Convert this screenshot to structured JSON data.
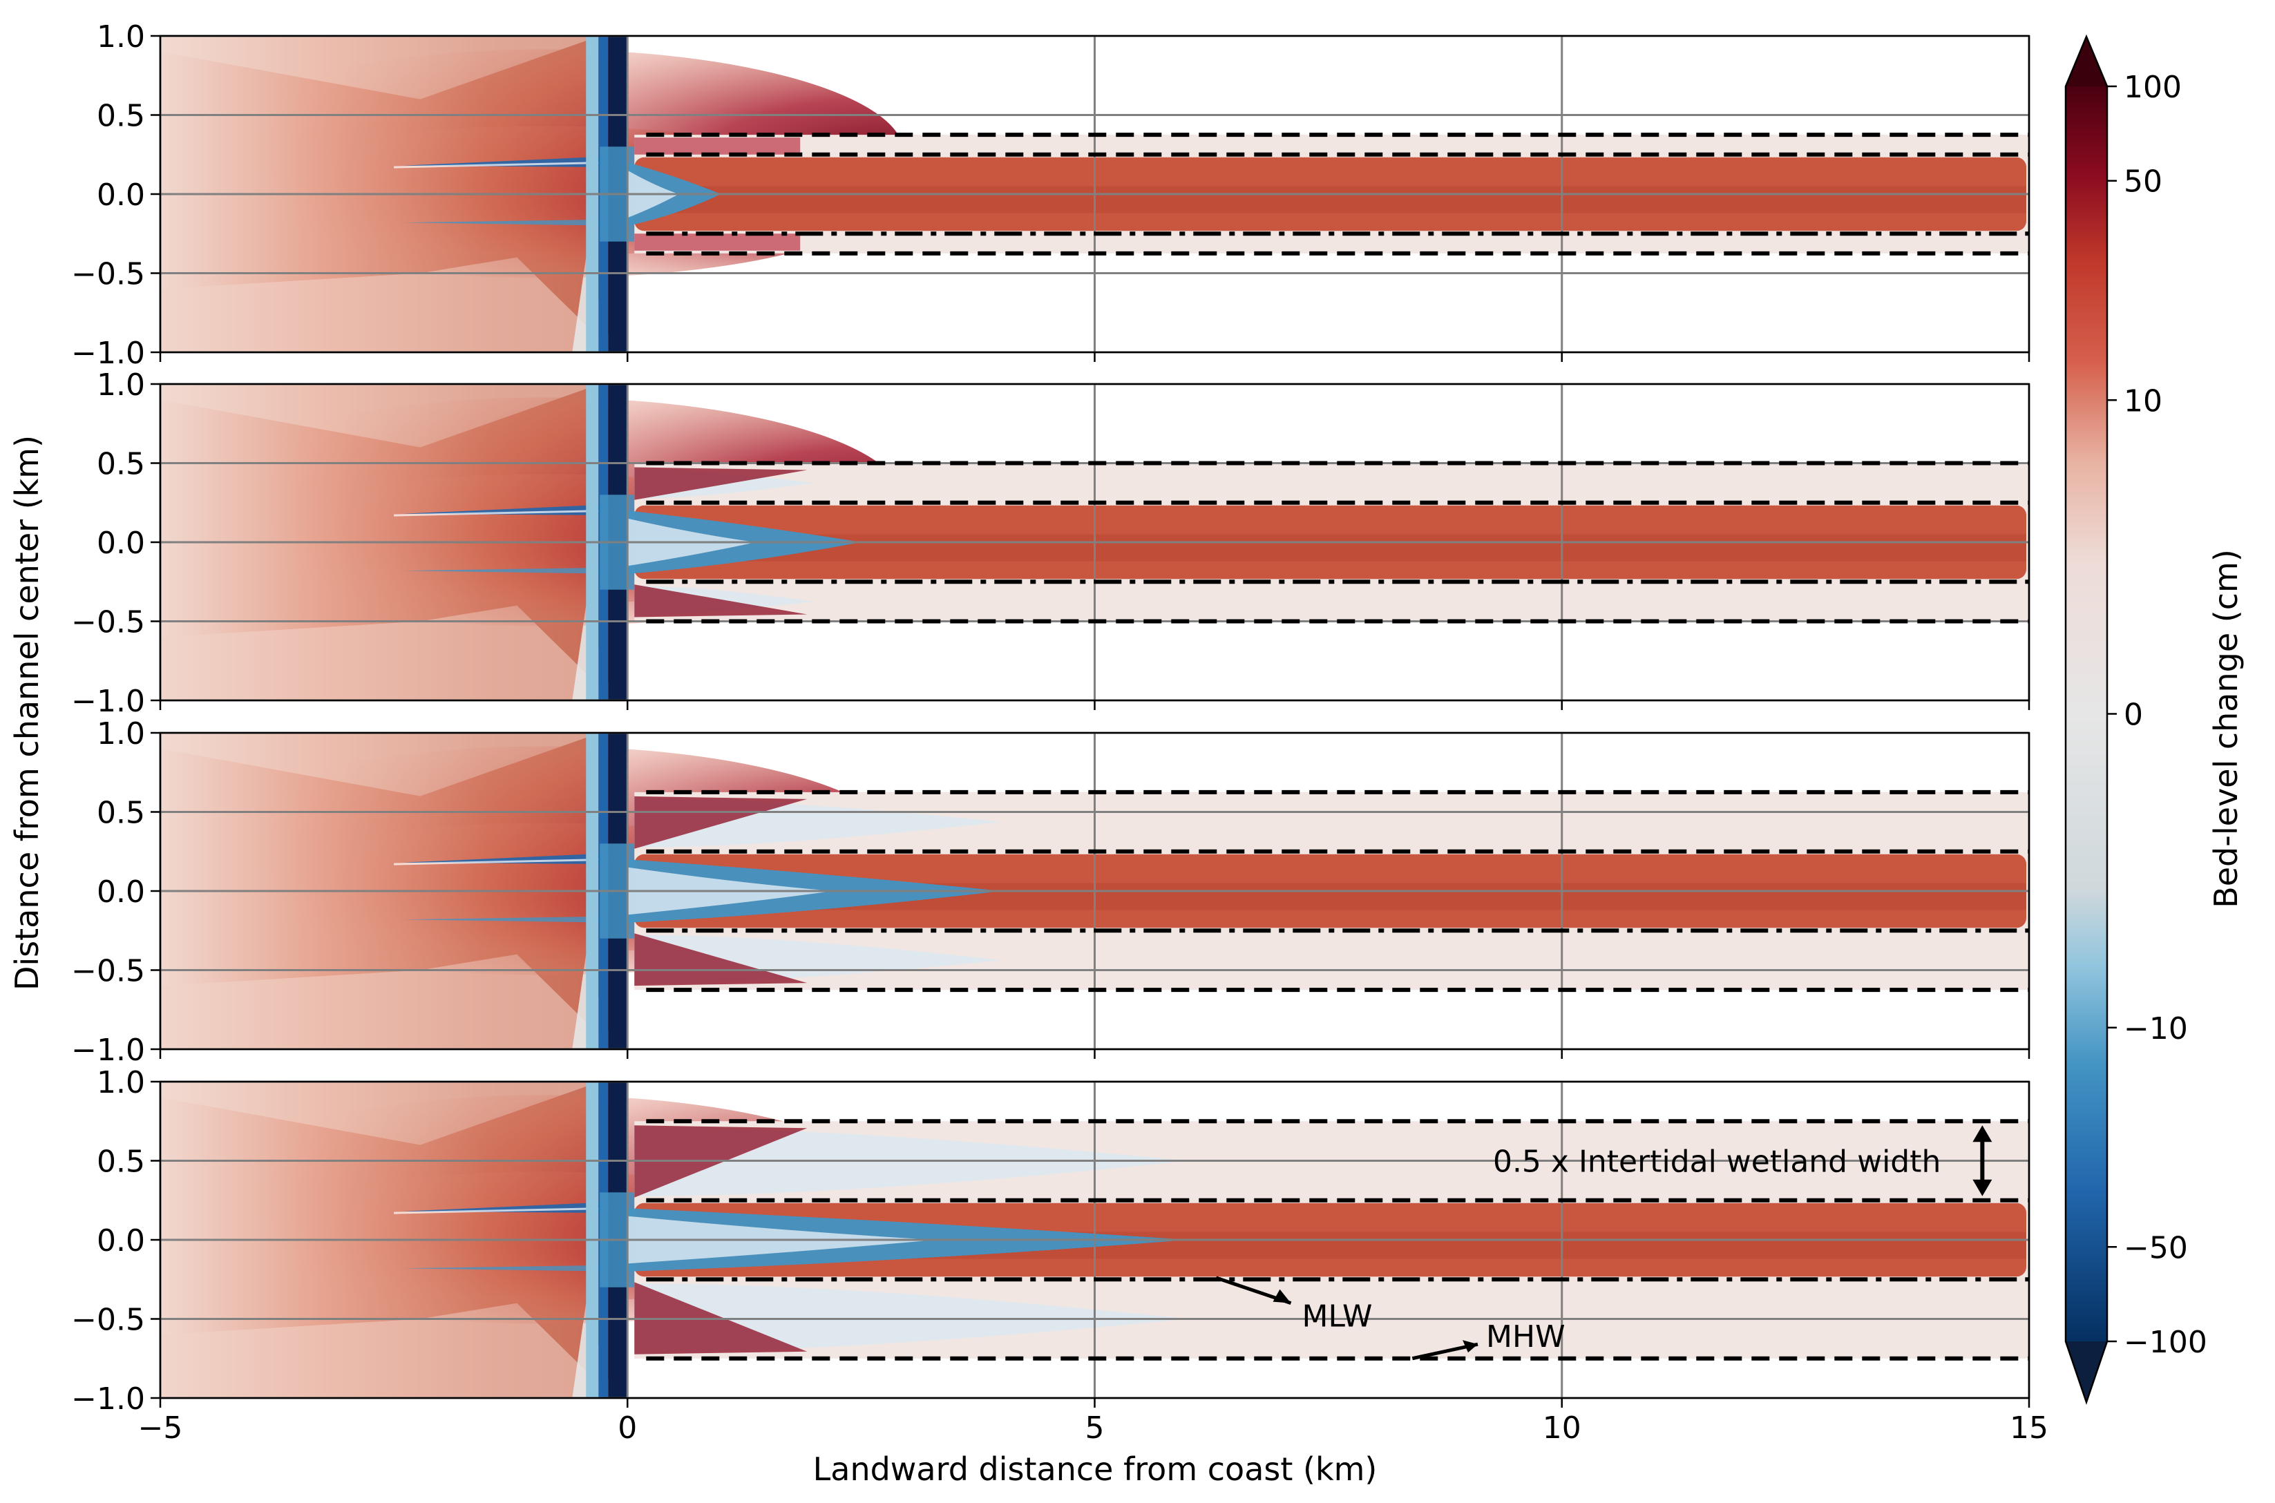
{
  "chart_data": {
    "type": "heatmap",
    "description_panels": 4,
    "xlabel": "Landward distance from coast (km)",
    "ylabel": "Distance from channel center (km)",
    "xlim": [
      -5,
      15
    ],
    "ylim": [
      -1,
      1
    ],
    "x_ticks": [
      {
        "value": -5,
        "label": "−5"
      },
      {
        "value": 0,
        "label": "0"
      },
      {
        "value": 5,
        "label": "5"
      },
      {
        "value": 10,
        "label": "10"
      },
      {
        "value": 15,
        "label": "15"
      }
    ],
    "y_ticks": [
      {
        "value": 1.0,
        "label": "1.0"
      },
      {
        "value": 0.5,
        "label": "0.5"
      },
      {
        "value": 0.0,
        "label": "0.0"
      },
      {
        "value": -0.5,
        "label": "−0.5"
      },
      {
        "value": -1.0,
        "label": "−1.0"
      }
    ],
    "grid": true,
    "panels": [
      {
        "mhw": 0.375,
        "mlw": 0.25,
        "wetland_half_width": 0.375,
        "blue_extent_km": 1.0,
        "fade_km": 0.5
      },
      {
        "mhw": 0.5,
        "mlw": 0.25,
        "wetland_half_width": 0.5,
        "blue_extent_km": 2.5,
        "fade_km": 2.0
      },
      {
        "mhw": 0.625,
        "mlw": 0.25,
        "wetland_half_width": 0.625,
        "blue_extent_km": 4.0,
        "fade_km": 4.0
      },
      {
        "mhw": 0.75,
        "mlw": 0.25,
        "wetland_half_width": 0.75,
        "blue_extent_km": 6.0,
        "fade_km": 6.0
      }
    ],
    "colorbar": {
      "label": "Bed-level change (cm)",
      "scale": "symlog",
      "range": [
        -100,
        100
      ],
      "ticks": [
        {
          "value": 100,
          "label": "100"
        },
        {
          "value": 50,
          "label": "50"
        },
        {
          "value": 10,
          "label": "10"
        },
        {
          "value": 0,
          "label": "0"
        },
        {
          "value": -10,
          "label": "−10"
        },
        {
          "value": -50,
          "label": "−50"
        },
        {
          "value": -100,
          "label": "−100"
        }
      ],
      "extend": "both"
    },
    "annotations": {
      "wetland": {
        "text": "0.5 x Intertidal wetland width",
        "panel": 4,
        "arrow_x_km": 14.5
      },
      "mlw": {
        "text": "MLW",
        "panel": 4,
        "from": [
          6.3,
          -0.24
        ],
        "to": [
          7.1,
          -0.4
        ]
      },
      "mhw": {
        "text": "MHW",
        "panel": 4,
        "from": [
          8.4,
          -0.75
        ],
        "to": [
          9.1,
          -0.66
        ]
      }
    },
    "line_styles": {
      "mhw": "dashed",
      "mlw": "dash-dot",
      "color": "#000000"
    }
  },
  "colors": {
    "deep_red": "#67001f",
    "red": "#b2182b",
    "orange_red": "#d6604d",
    "salmon": "#f4a582",
    "pale": "#fddbc7",
    "neutral": "#e6e6e6",
    "light_blue": "#92c5de",
    "blue": "#4393c3",
    "navy": "#053061",
    "grid": "#808080"
  }
}
